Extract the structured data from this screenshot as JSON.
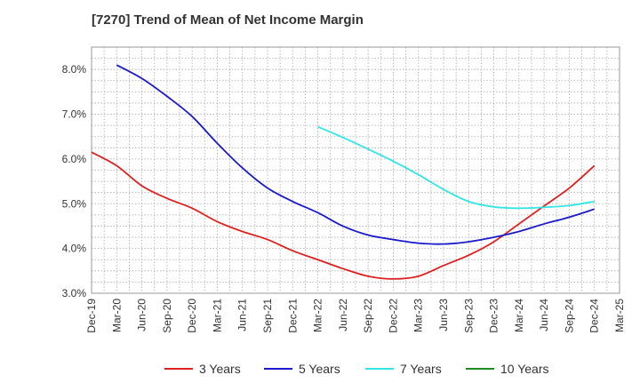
{
  "chart_data": {
    "type": "line",
    "title": "[7270]  Trend of Mean of Net Income Margin",
    "xlabel": "",
    "ylabel": "",
    "x_ticks": [
      "Dec-19",
      "Mar-20",
      "Jun-20",
      "Sep-20",
      "Dec-20",
      "Mar-21",
      "Jun-21",
      "Sep-21",
      "Dec-21",
      "Mar-22",
      "Jun-22",
      "Sep-22",
      "Dec-22",
      "Mar-23",
      "Jun-23",
      "Sep-23",
      "Dec-23",
      "Mar-24",
      "Jun-24",
      "Sep-24",
      "Dec-24",
      "Mar-25"
    ],
    "y_ticks": [
      "3.0%",
      "4.0%",
      "5.0%",
      "6.0%",
      "7.0%",
      "8.0%"
    ],
    "ylim": [
      3.0,
      8.5
    ],
    "grid": true,
    "legend_position": "bottom",
    "series": [
      {
        "name": "3 Years",
        "color": "#e02020",
        "x": [
          "Dec-19",
          "Mar-20",
          "Jun-20",
          "Sep-20",
          "Dec-20",
          "Mar-21",
          "Jun-21",
          "Sep-21",
          "Dec-21",
          "Mar-22",
          "Jun-22",
          "Sep-22",
          "Dec-22",
          "Mar-23",
          "Jun-23",
          "Sep-23",
          "Dec-23",
          "Mar-24",
          "Jun-24",
          "Sep-24",
          "Dec-24"
        ],
        "values": [
          6.15,
          5.85,
          5.4,
          5.12,
          4.9,
          4.6,
          4.38,
          4.2,
          3.95,
          3.75,
          3.55,
          3.38,
          3.32,
          3.38,
          3.62,
          3.85,
          4.15,
          4.55,
          4.95,
          5.35,
          5.85
        ]
      },
      {
        "name": "5 Years",
        "color": "#1a1acc",
        "x": [
          "Mar-20",
          "Jun-20",
          "Sep-20",
          "Dec-20",
          "Mar-21",
          "Jun-21",
          "Sep-21",
          "Dec-21",
          "Mar-22",
          "Jun-22",
          "Sep-22",
          "Dec-22",
          "Mar-23",
          "Jun-23",
          "Sep-23",
          "Dec-23",
          "Mar-24",
          "Jun-24",
          "Sep-24",
          "Dec-24"
        ],
        "values": [
          8.1,
          7.8,
          7.4,
          6.95,
          6.35,
          5.8,
          5.35,
          5.05,
          4.8,
          4.5,
          4.3,
          4.2,
          4.12,
          4.1,
          4.15,
          4.25,
          4.38,
          4.55,
          4.7,
          4.88
        ]
      },
      {
        "name": "7 Years",
        "color": "#33e6e6",
        "x": [
          "Mar-22",
          "Jun-22",
          "Sep-22",
          "Dec-22",
          "Mar-23",
          "Jun-23",
          "Sep-23",
          "Dec-23",
          "Mar-24",
          "Jun-24",
          "Sep-24",
          "Dec-24"
        ],
        "values": [
          6.72,
          6.48,
          6.22,
          5.95,
          5.65,
          5.32,
          5.05,
          4.93,
          4.9,
          4.92,
          4.96,
          5.05
        ]
      },
      {
        "name": "10 Years",
        "color": "#1f8c1f",
        "x": [],
        "values": []
      }
    ]
  }
}
